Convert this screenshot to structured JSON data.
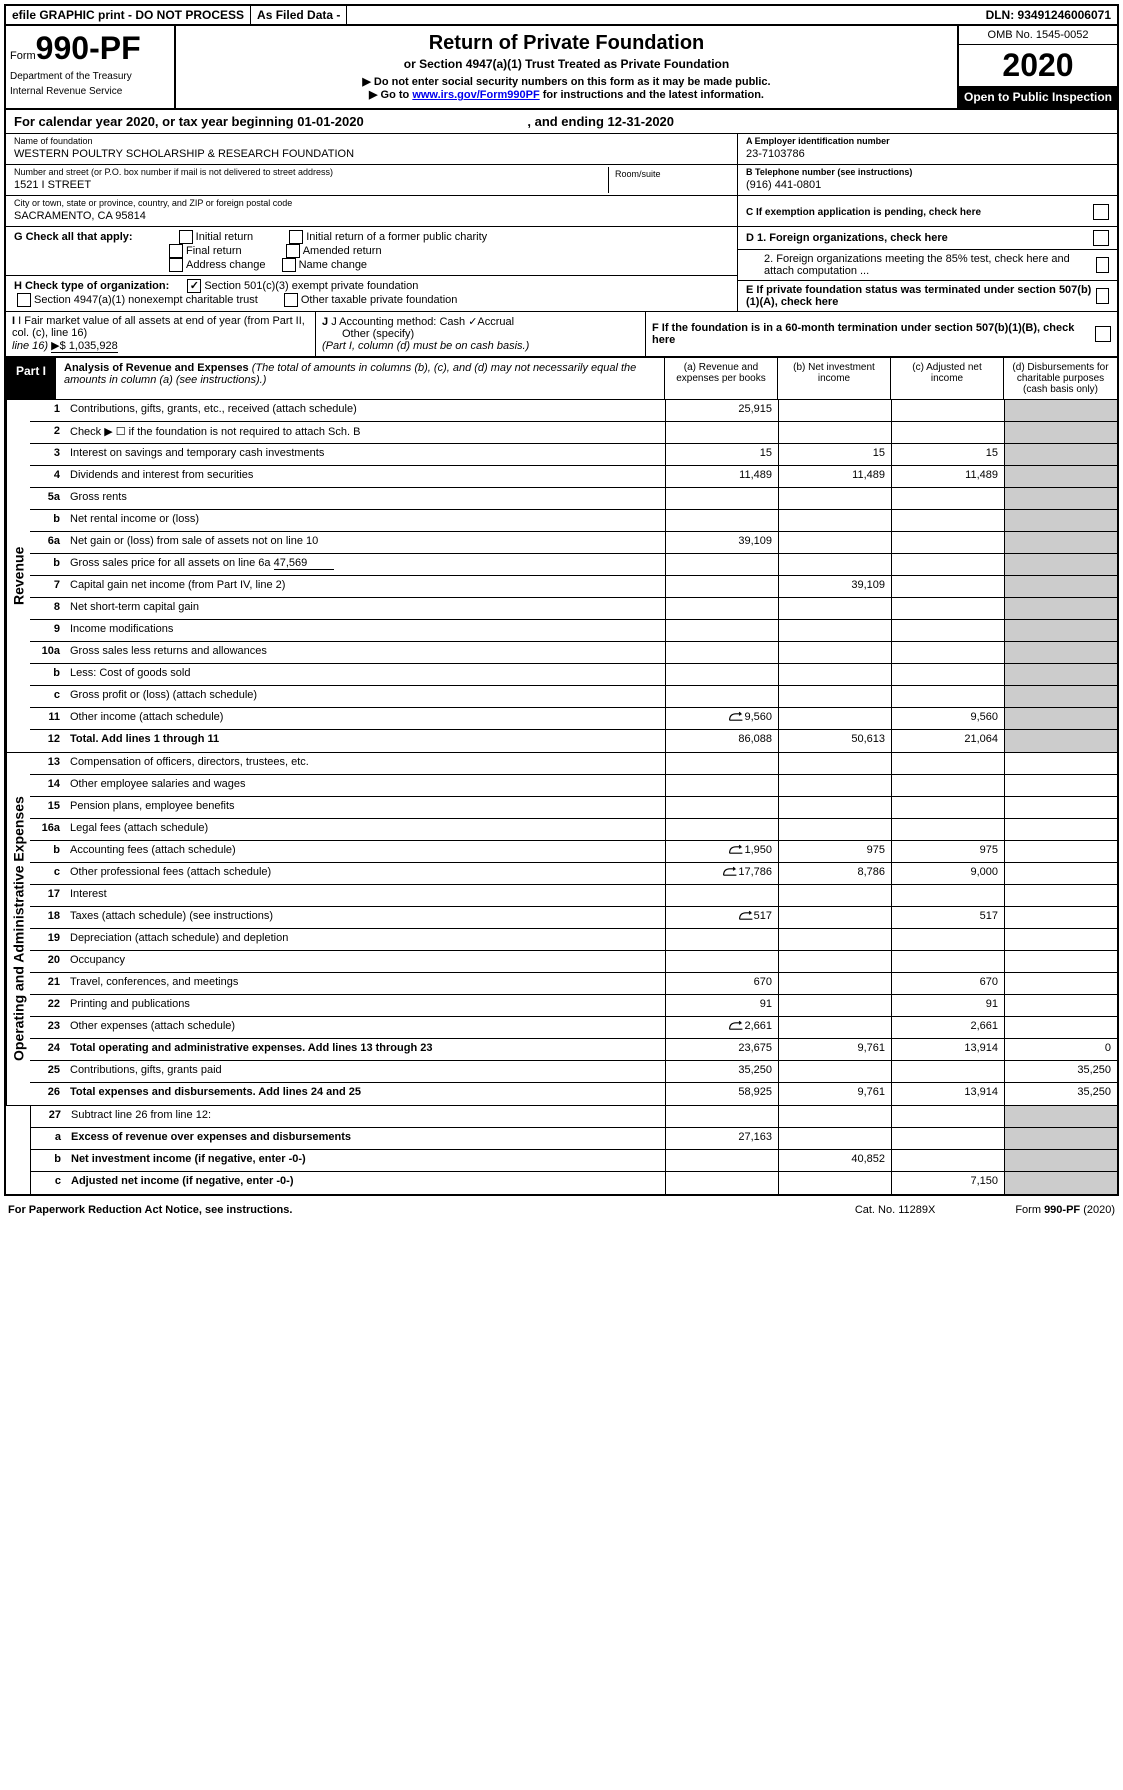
{
  "topbar": {
    "efile": "efile GRAPHIC print - DO NOT PROCESS",
    "filed": "As Filed Data -",
    "dln": "DLN: 93491246006071"
  },
  "header": {
    "form_prefix": "Form",
    "form_num": "990-PF",
    "dept1": "Department of the Treasury",
    "dept2": "Internal Revenue Service",
    "title": "Return of Private Foundation",
    "subtitle": "or Section 4947(a)(1) Trust Treated as Private Foundation",
    "inst1": "▶ Do not enter social security numbers on this form as it may be made public.",
    "inst2_pre": "▶ Go to ",
    "inst2_link": "www.irs.gov/Form990PF",
    "inst2_post": " for instructions and the latest information.",
    "omb": "OMB No. 1545-0052",
    "year": "2020",
    "inspection": "Open to Public Inspection"
  },
  "calyear": {
    "text": "For calendar year 2020, or tax year beginning 01-01-2020",
    "ending": ", and ending 12-31-2020"
  },
  "foundation": {
    "name_label": "Name of foundation",
    "name": "WESTERN POULTRY SCHOLARSHIP & RESEARCH FOUNDATION",
    "addr_label": "Number and street (or P.O. box number if mail is not delivered to street address)",
    "addr": "1521 I STREET",
    "room_label": "Room/suite",
    "city_label": "City or town, state or province, country, and ZIP or foreign postal code",
    "city": "SACRAMENTO, CA  95814",
    "ein_label": "A Employer identification number",
    "ein": "23-7103786",
    "phone_label": "B Telephone number (see instructions)",
    "phone": "(916) 441-0801",
    "c_label": "C If exemption application is pending, check here"
  },
  "checks": {
    "g_label": "G Check all that apply:",
    "g1": "Initial return",
    "g2": "Initial return of a former public charity",
    "g3": "Final return",
    "g4": "Amended return",
    "g5": "Address change",
    "g6": "Name change",
    "h_label": "H Check type of organization:",
    "h1": "Section 501(c)(3) exempt private foundation",
    "h2": "Section 4947(a)(1) nonexempt charitable trust",
    "h3": "Other taxable private foundation",
    "d1": "D 1. Foreign organizations, check here",
    "d2": "2. Foreign organizations meeting the 85% test, check here and attach computation ...",
    "e": "E  If private foundation status was terminated under section 507(b)(1)(A), check here",
    "f": "F  If the foundation is in a 60-month termination under section 507(b)(1)(B), check here"
  },
  "fmv": {
    "i_label": "I Fair market value of all assets at end of year (from Part II, col. (c), line 16)",
    "i_val": "▶$ 1,035,928",
    "j_label": "J Accounting method:",
    "j1": "Cash",
    "j2": "Accrual",
    "j3": "Other (specify)",
    "j_note": "(Part I, column (d) must be on cash basis.)"
  },
  "part1": {
    "label": "Part I",
    "title": "Analysis of Revenue and Expenses",
    "note": "(The total of amounts in columns (b), (c), and (d) may not necessarily equal the amounts in column (a) (see instructions).)",
    "col_a": "(a) Revenue and expenses per books",
    "col_b": "(b) Net investment income",
    "col_c": "(c) Adjusted net income",
    "col_d": "(d) Disbursements for charitable purposes (cash basis only)",
    "side_revenue": "Revenue",
    "side_expenses": "Operating and Administrative Expenses"
  },
  "rows": {
    "r1": {
      "n": "1",
      "d": "Contributions, gifts, grants, etc., received (attach schedule)",
      "a": "25,915"
    },
    "r2": {
      "n": "2",
      "d": "Check ▶ ☐ if the foundation is not required to attach Sch. B"
    },
    "r3": {
      "n": "3",
      "d": "Interest on savings and temporary cash investments",
      "a": "15",
      "b": "15",
      "c": "15"
    },
    "r4": {
      "n": "4",
      "d": "Dividends and interest from securities",
      "a": "11,489",
      "b": "11,489",
      "c": "11,489"
    },
    "r5a": {
      "n": "5a",
      "d": "Gross rents"
    },
    "r5b": {
      "n": "b",
      "d": "Net rental income or (loss)"
    },
    "r6a": {
      "n": "6a",
      "d": "Net gain or (loss) from sale of assets not on line 10",
      "a": "39,109"
    },
    "r6b": {
      "n": "b",
      "d": "Gross sales price for all assets on line 6a",
      "v": "47,569"
    },
    "r7": {
      "n": "7",
      "d": "Capital gain net income (from Part IV, line 2)",
      "b": "39,109"
    },
    "r8": {
      "n": "8",
      "d": "Net short-term capital gain"
    },
    "r9": {
      "n": "9",
      "d": "Income modifications"
    },
    "r10a": {
      "n": "10a",
      "d": "Gross sales less returns and allowances"
    },
    "r10b": {
      "n": "b",
      "d": "Less: Cost of goods sold"
    },
    "r10c": {
      "n": "c",
      "d": "Gross profit or (loss) (attach schedule)"
    },
    "r11": {
      "n": "11",
      "d": "Other income (attach schedule)",
      "a": "9,560",
      "c": "9,560",
      "icon": true
    },
    "r12": {
      "n": "12",
      "d": "Total. Add lines 1 through 11",
      "a": "86,088",
      "b": "50,613",
      "c": "21,064",
      "bold": true
    },
    "r13": {
      "n": "13",
      "d": "Compensation of officers, directors, trustees, etc."
    },
    "r14": {
      "n": "14",
      "d": "Other employee salaries and wages"
    },
    "r15": {
      "n": "15",
      "d": "Pension plans, employee benefits"
    },
    "r16a": {
      "n": "16a",
      "d": "Legal fees (attach schedule)"
    },
    "r16b": {
      "n": "b",
      "d": "Accounting fees (attach schedule)",
      "a": "1,950",
      "b": "975",
      "c": "975",
      "icon": true
    },
    "r16c": {
      "n": "c",
      "d": "Other professional fees (attach schedule)",
      "a": "17,786",
      "b": "8,786",
      "c": "9,000",
      "icon": true
    },
    "r17": {
      "n": "17",
      "d": "Interest"
    },
    "r18": {
      "n": "18",
      "d": "Taxes (attach schedule) (see instructions)",
      "a": "517",
      "c": "517",
      "icon": true
    },
    "r19": {
      "n": "19",
      "d": "Depreciation (attach schedule) and depletion"
    },
    "r20": {
      "n": "20",
      "d": "Occupancy"
    },
    "r21": {
      "n": "21",
      "d": "Travel, conferences, and meetings",
      "a": "670",
      "c": "670"
    },
    "r22": {
      "n": "22",
      "d": "Printing and publications",
      "a": "91",
      "c": "91"
    },
    "r23": {
      "n": "23",
      "d": "Other expenses (attach schedule)",
      "a": "2,661",
      "c": "2,661",
      "icon": true
    },
    "r24": {
      "n": "24",
      "d": "Total operating and administrative expenses. Add lines 13 through 23",
      "a": "23,675",
      "b": "9,761",
      "c": "13,914",
      "dd": "0",
      "bold": true
    },
    "r25": {
      "n": "25",
      "d": "Contributions, gifts, grants paid",
      "a": "35,250",
      "dd": "35,250"
    },
    "r26": {
      "n": "26",
      "d": "Total expenses and disbursements. Add lines 24 and 25",
      "a": "58,925",
      "b": "9,761",
      "c": "13,914",
      "dd": "35,250",
      "bold": true
    },
    "r27": {
      "n": "27",
      "d": "Subtract line 26 from line 12:"
    },
    "r27a": {
      "n": "a",
      "d": "Excess of revenue over expenses and disbursements",
      "a": "27,163",
      "bold": true
    },
    "r27b": {
      "n": "b",
      "d": "Net investment income (if negative, enter -0-)",
      "b": "40,852",
      "bold": true
    },
    "r27c": {
      "n": "c",
      "d": "Adjusted net income (if negative, enter -0-)",
      "c": "7,150",
      "bold": true
    }
  },
  "footer": {
    "left": "For Paperwork Reduction Act Notice, see instructions.",
    "mid": "Cat. No. 11289X",
    "right": "Form 990-PF (2020)"
  }
}
